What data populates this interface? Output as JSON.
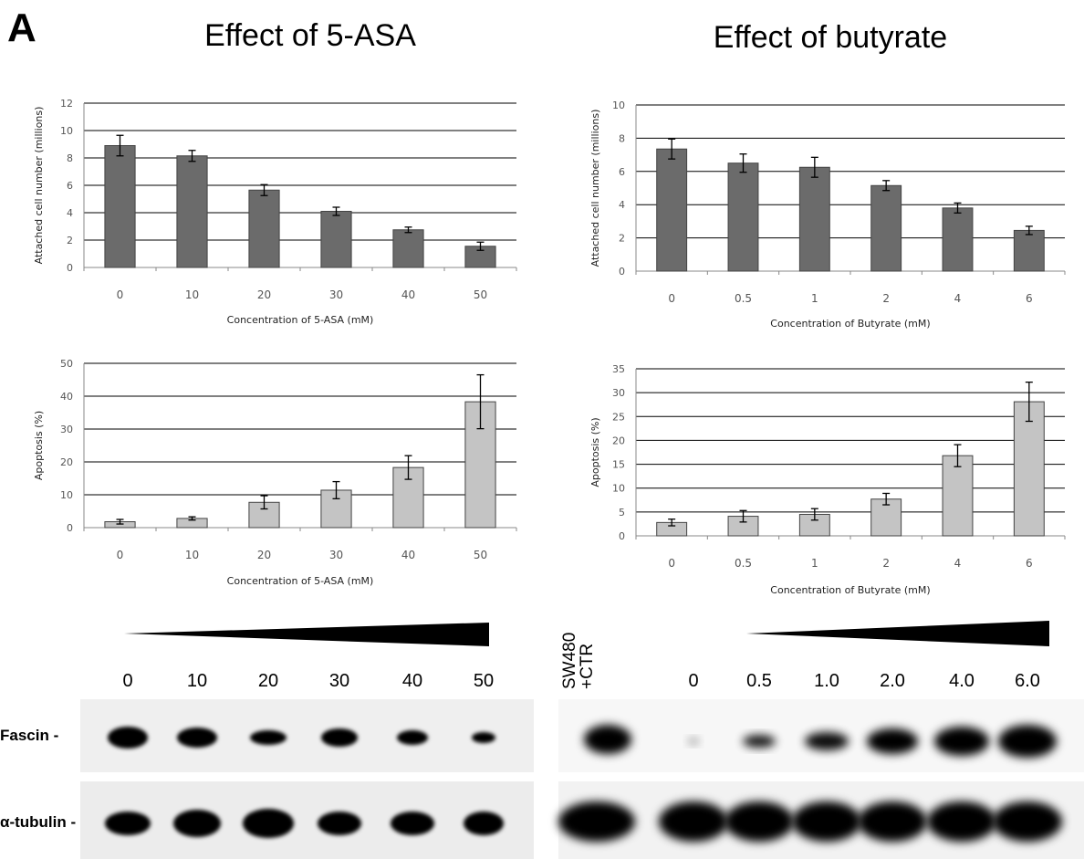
{
  "panel_letter": "A",
  "left_title": "Effect of 5-ASA",
  "right_title": "Effect of butyrate",
  "chart_data": [
    {
      "id": "asa-attached",
      "type": "bar",
      "categories": [
        "0",
        "10",
        "20",
        "30",
        "40",
        "50"
      ],
      "values": [
        8.9,
        8.15,
        5.65,
        4.1,
        2.75,
        1.55
      ],
      "errors": [
        0.75,
        0.4,
        0.4,
        0.3,
        0.2,
        0.3
      ],
      "yticks": [
        0,
        2,
        4,
        6,
        8,
        10,
        12
      ],
      "ylim": [
        0,
        12
      ],
      "xlabel": "Concentration of 5-ASA (mM)",
      "ylabel": "Attached cell number (millions)",
      "bar_color": "#6b6b6b",
      "grid": true
    },
    {
      "id": "asa-apoptosis",
      "type": "bar",
      "categories": [
        "0",
        "10",
        "20",
        "30",
        "40",
        "50"
      ],
      "values": [
        1.8,
        2.8,
        7.7,
        11.4,
        18.3,
        38.3
      ],
      "errors": [
        0.7,
        0.5,
        2.0,
        2.6,
        3.6,
        8.2
      ],
      "yticks": [
        0,
        10,
        20,
        30,
        40,
        50
      ],
      "ylim": [
        0,
        50
      ],
      "xlabel": "Concentration of 5-ASA (mM)",
      "ylabel": "Apoptosis (%)",
      "bar_color": "#c4c4c4",
      "grid": true
    },
    {
      "id": "but-attached",
      "type": "bar",
      "categories": [
        "0",
        "0.5",
        "1",
        "2",
        "4",
        "6"
      ],
      "values": [
        7.35,
        6.5,
        6.25,
        5.15,
        3.8,
        2.45
      ],
      "errors": [
        0.6,
        0.55,
        0.6,
        0.3,
        0.3,
        0.25
      ],
      "yticks": [
        0,
        2,
        4,
        6,
        8,
        10
      ],
      "ylim": [
        0,
        10
      ],
      "xlabel": "Concentration of Butyrate (mM)",
      "ylabel": "Attached cell number (millions)",
      "bar_color": "#6b6b6b",
      "grid": true
    },
    {
      "id": "but-apoptosis",
      "type": "bar",
      "categories": [
        "0",
        "0.5",
        "1",
        "2",
        "4",
        "6"
      ],
      "values": [
        2.8,
        4.1,
        4.5,
        7.7,
        16.8,
        28.1
      ],
      "errors": [
        0.7,
        1.2,
        1.2,
        1.2,
        2.3,
        4.1
      ],
      "yticks": [
        0,
        5,
        10,
        15,
        20,
        25,
        30,
        35
      ],
      "ylim": [
        0,
        35
      ],
      "xlabel": "Concentration of Butyrate (mM)",
      "ylabel": "Apoptosis (%)",
      "bar_color": "#c4c4c4",
      "grid": true
    }
  ],
  "blots": {
    "left_lanes": [
      "0",
      "10",
      "20",
      "30",
      "40",
      "50"
    ],
    "right_lanes": [
      "0",
      "0.5",
      "1.0",
      "2.0",
      "4.0",
      "6.0"
    ],
    "right_control_label": "SW480\n+CTR",
    "row_labels": {
      "fascin": "Fascin -",
      "tubulin": "α-tubulin -"
    }
  }
}
